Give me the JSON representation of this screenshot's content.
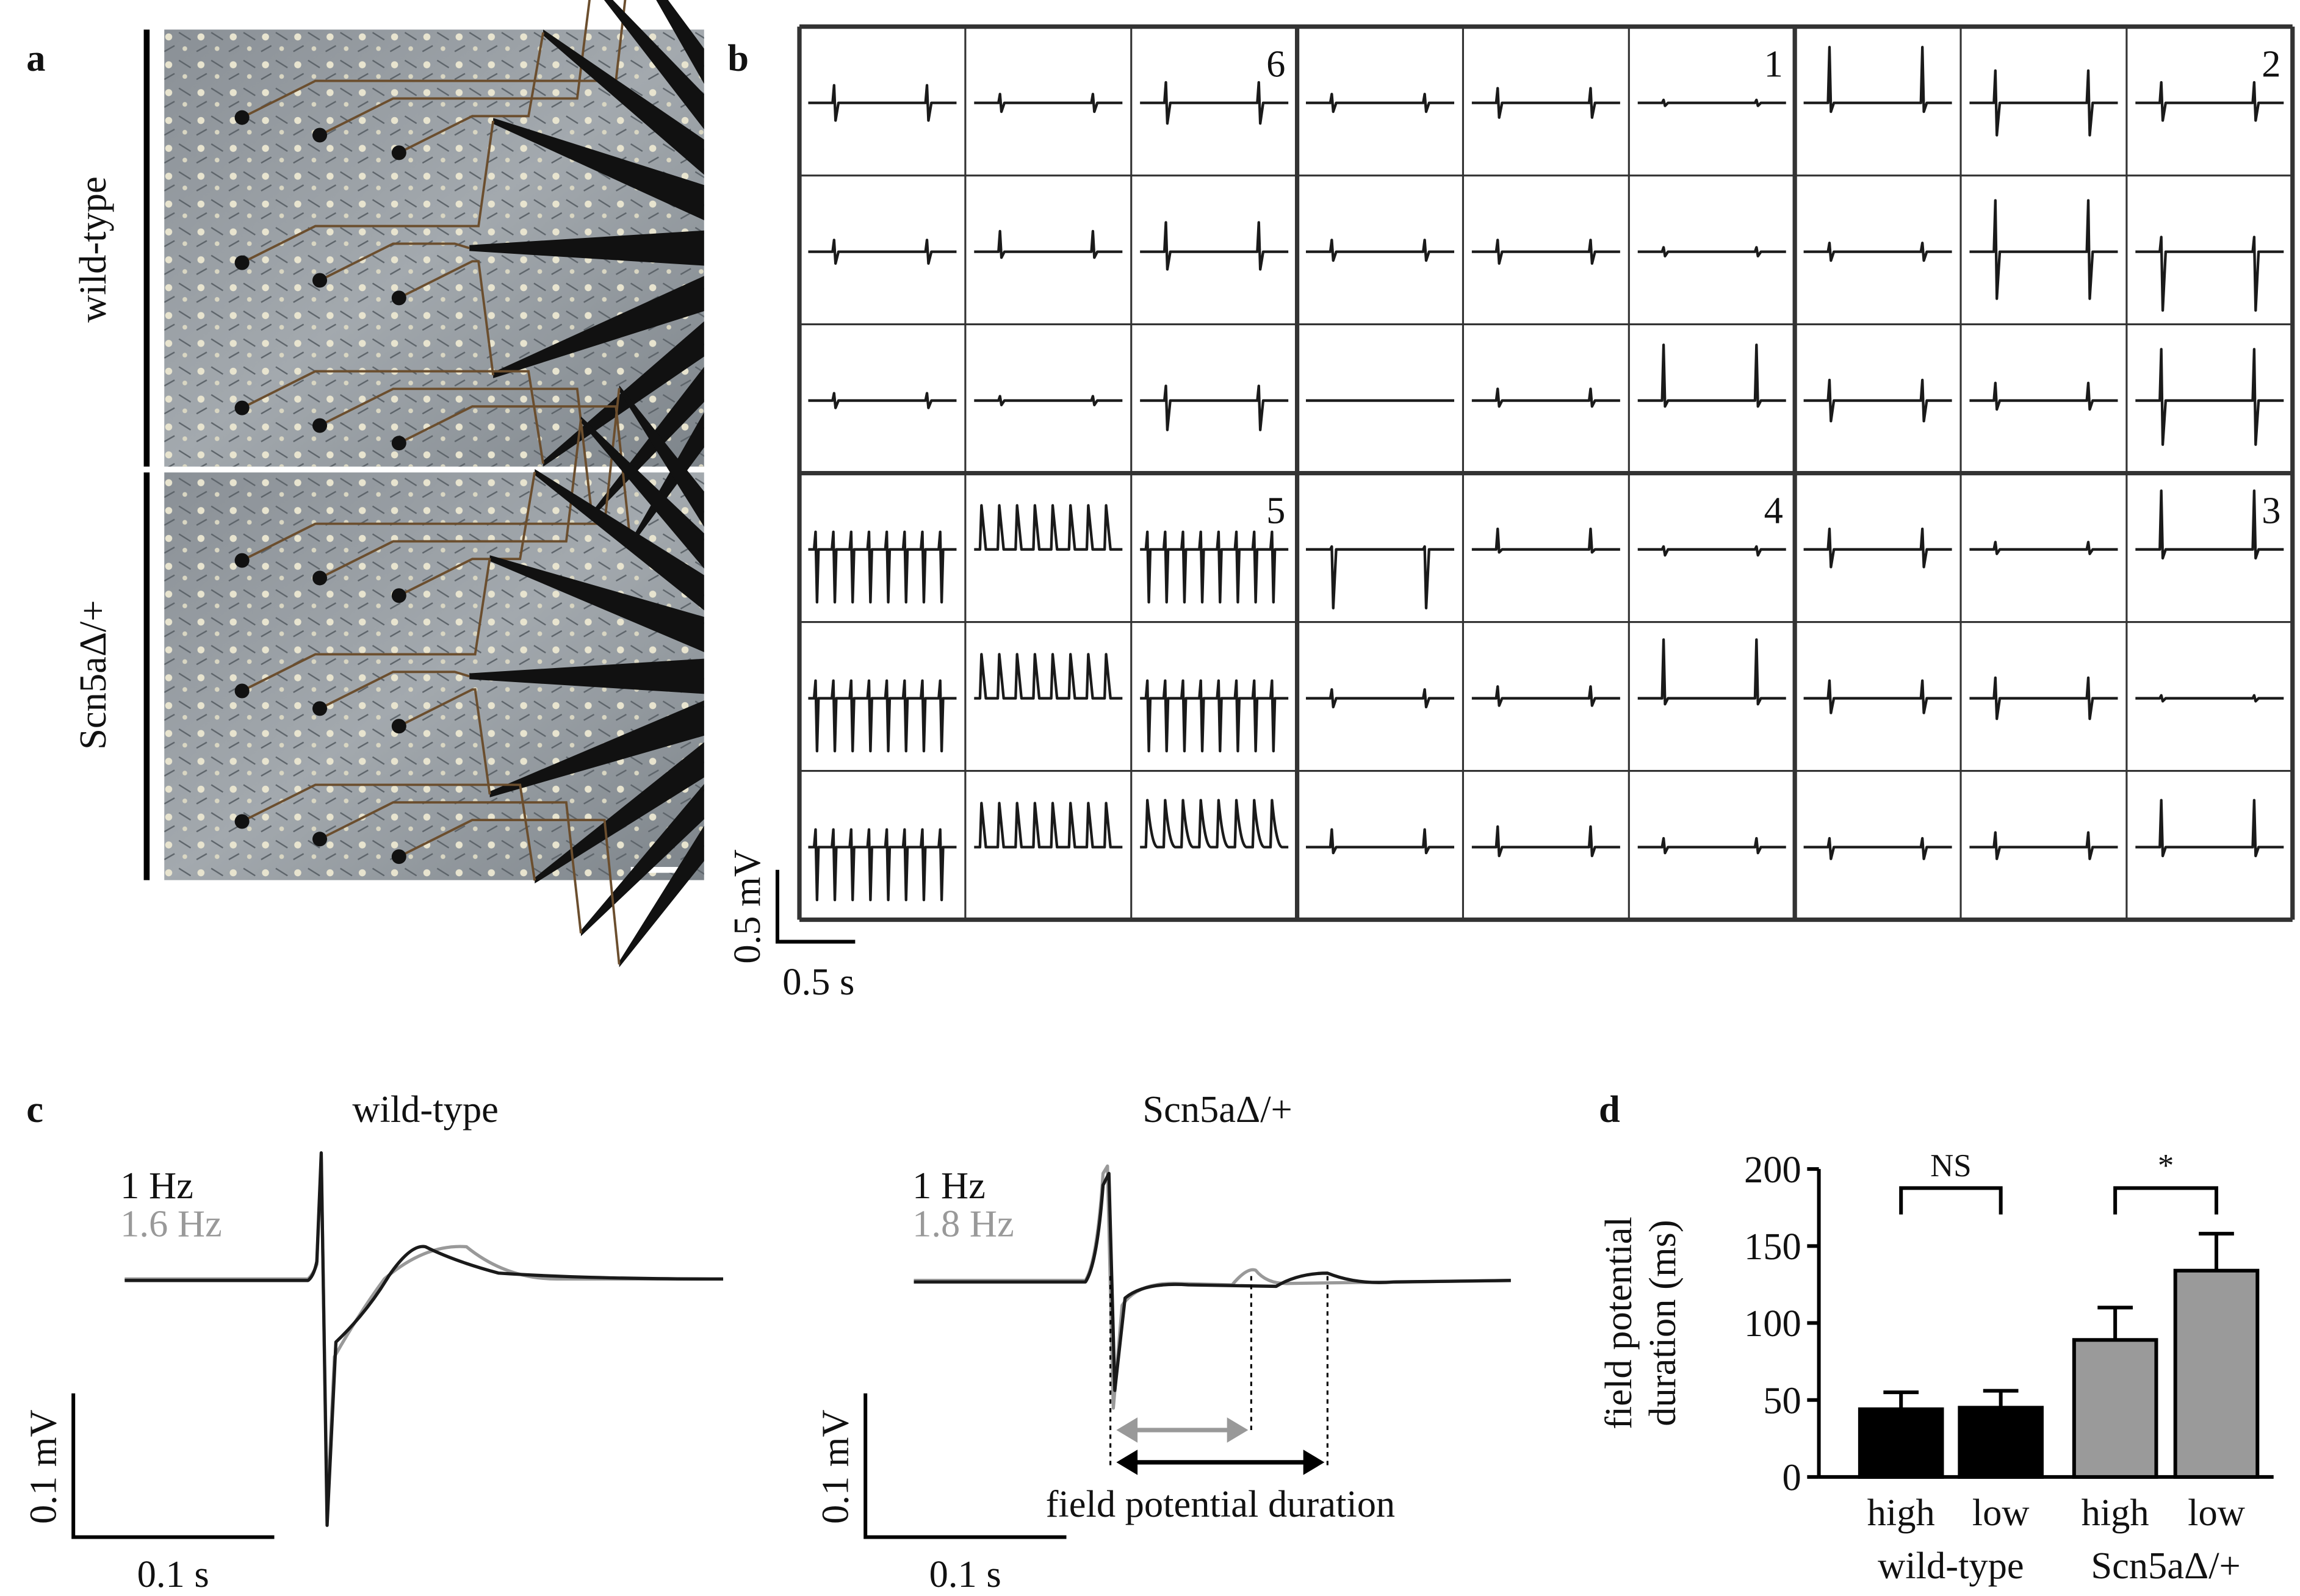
{
  "panel_a": {
    "label": "a",
    "conditions": [
      "wild-type",
      "Scn5aΔ/+"
    ]
  },
  "panel_b": {
    "label": "b",
    "electrode_numbers": [
      "6",
      "1",
      "2",
      "5",
      "4",
      "3"
    ],
    "scale_voltage": "0.5 mV",
    "scale_time": "0.5 s"
  },
  "panel_c": {
    "label": "c",
    "plots": [
      {
        "title": "wild-type",
        "rates": [
          "1 Hz",
          "1.6 Hz"
        ],
        "scale_voltage": "0.1 mV",
        "scale_time": "0.1 s"
      },
      {
        "title": "Scn5aΔ/+",
        "rates": [
          "1 Hz",
          "1.8 Hz"
        ],
        "scale_voltage": "0.1 mV",
        "scale_time": "0.1 s",
        "annotation": "field potential duration"
      }
    ]
  },
  "chart_data": {
    "type": "bar",
    "label": "d",
    "ylabel": [
      "field potential",
      "duration (ms)"
    ],
    "categories": [
      "high",
      "low",
      "high",
      "low"
    ],
    "groups": [
      "wild-type",
      "Scn5aΔ/+"
    ],
    "values": [
      44,
      45,
      89,
      134
    ],
    "errors": [
      11,
      11,
      21,
      24
    ],
    "colors": [
      "#000000",
      "#000000",
      "#9a9a9a",
      "#9a9a9a"
    ],
    "ylim": [
      0,
      200
    ],
    "yticks": [
      0,
      50,
      100,
      150,
      200
    ],
    "significance": [
      "NS",
      "*"
    ]
  }
}
